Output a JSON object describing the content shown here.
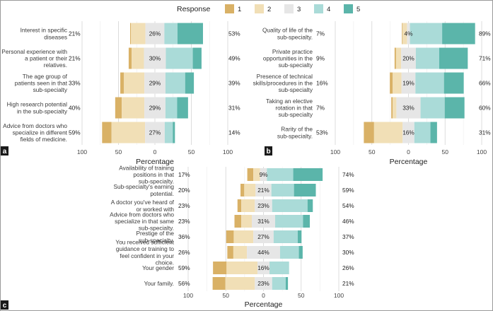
{
  "legend": {
    "title": "Response",
    "levels": [
      "1",
      "2",
      "3",
      "4",
      "5"
    ],
    "colors": [
      "#d9b166",
      "#f1dfb6",
      "#e6e6e6",
      "#aadbd8",
      "#5bb5aa"
    ]
  },
  "axis_label": "Percentage",
  "tick_labels": [
    "100",
    "50",
    "0",
    "50",
    "100"
  ],
  "chart_data": [
    {
      "panel": "a",
      "type": "diverging-stacked-bar",
      "xlabel": "Percentage",
      "xlim": [
        -100,
        100
      ],
      "items": [
        {
          "label": [
            "Interest in specific",
            "diseases"
          ],
          "low": "21%",
          "mid": "26%",
          "high": "53%",
          "values": [
            1,
            20,
            26,
            18,
            35
          ]
        },
        {
          "label": [
            "Personal experience with",
            "a patient or their",
            "relatives."
          ],
          "low": "21%",
          "mid": "30%",
          "high": "49%",
          "values": [
            4,
            17,
            30,
            37,
            12
          ]
        },
        {
          "label": [
            "The age group of",
            "patients seen in that",
            "sub-specialty"
          ],
          "low": "33%",
          "mid": "29%",
          "high": "39%",
          "values": [
            5,
            28,
            29,
            27,
            12
          ]
        },
        {
          "label": [
            "High research potential",
            "in the sub-specialty"
          ],
          "low": "40%",
          "mid": "29%",
          "high": "31%",
          "values": [
            9,
            31,
            29,
            16,
            15
          ]
        },
        {
          "label": [
            "Advice from doctors who",
            "specialize in different",
            "fields of medicine."
          ],
          "low": "59%",
          "mid": "27%",
          "high": "14%",
          "values": [
            13,
            46,
            27,
            11,
            3
          ]
        }
      ]
    },
    {
      "panel": "b",
      "type": "diverging-stacked-bar",
      "xlabel": "Percentage",
      "xlim": [
        -100,
        100
      ],
      "items": [
        {
          "label": [
            "Quality of life of the",
            "sub-specialty."
          ],
          "low": "7%",
          "mid": "4%",
          "high": "89%",
          "values": [
            1,
            6,
            4,
            44,
            45
          ]
        },
        {
          "label": [
            "Private practice",
            "opportunities in the",
            "sub-specialty"
          ],
          "low": "9%",
          "mid": "20%",
          "high": "71%",
          "values": [
            2,
            7,
            20,
            32,
            39
          ]
        },
        {
          "label": [
            "Presence of technical",
            "skills/procedures in the",
            "sub-specialty"
          ],
          "low": "16%",
          "mid": "19%",
          "high": "66%",
          "values": [
            4,
            12,
            19,
            39,
            27
          ]
        },
        {
          "label": [
            "Taking an elective",
            "rotation in that",
            "sub-specialty"
          ],
          "low": "7%",
          "mid": "33%",
          "high": "60%",
          "values": [
            2,
            5,
            33,
            33,
            27
          ]
        },
        {
          "label": [
            "Rarity of the",
            "sub-specialty."
          ],
          "low": "53%",
          "mid": "16%",
          "high": "31%",
          "values": [
            14,
            39,
            16,
            22,
            9
          ]
        }
      ]
    },
    {
      "panel": "c",
      "type": "diverging-stacked-bar",
      "xlabel": "Percentage",
      "xlim": [
        -100,
        100
      ],
      "items": [
        {
          "label": [
            "Availability of training",
            "positions in that",
            "sub-specialty."
          ],
          "low": "17%",
          "mid": "9%",
          "high": "74%",
          "values": [
            8,
            9,
            9,
            35,
            39
          ]
        },
        {
          "label": [
            "Sub-specialty's earning",
            "potential."
          ],
          "low": "20%",
          "mid": "21%",
          "high": "59%",
          "values": [
            5,
            15,
            21,
            30,
            29
          ]
        },
        {
          "label": [
            "A doctor you've heard of",
            "or worked with"
          ],
          "low": "23%",
          "mid": "23%",
          "high": "54%",
          "values": [
            5,
            18,
            23,
            47,
            7
          ]
        },
        {
          "label": [
            "Advice from doctors who",
            "specialize in that same",
            "sub-specialty."
          ],
          "low": "23%",
          "mid": "31%",
          "high": "46%",
          "values": [
            9,
            14,
            31,
            37,
            9
          ]
        },
        {
          "label": [
            "Prestige of the",
            "sub-specialty."
          ],
          "low": "36%",
          "mid": "27%",
          "high": "37%",
          "values": [
            10,
            26,
            27,
            32,
            5
          ]
        },
        {
          "label": [
            "You received sufficient",
            "guidance or training to",
            "feel confident in your",
            "choice."
          ],
          "low": "26%",
          "mid": "44%",
          "high": "30%",
          "values": [
            8,
            18,
            44,
            25,
            5
          ]
        },
        {
          "label": [
            "Your gender"
          ],
          "low": "59%",
          "mid": "16%",
          "high": "26%",
          "values": [
            18,
            41,
            16,
            26,
            0
          ]
        },
        {
          "label": [
            "Your family."
          ],
          "low": "56%",
          "mid": "23%",
          "high": "21%",
          "values": [
            17,
            39,
            23,
            18,
            3
          ]
        }
      ]
    }
  ]
}
